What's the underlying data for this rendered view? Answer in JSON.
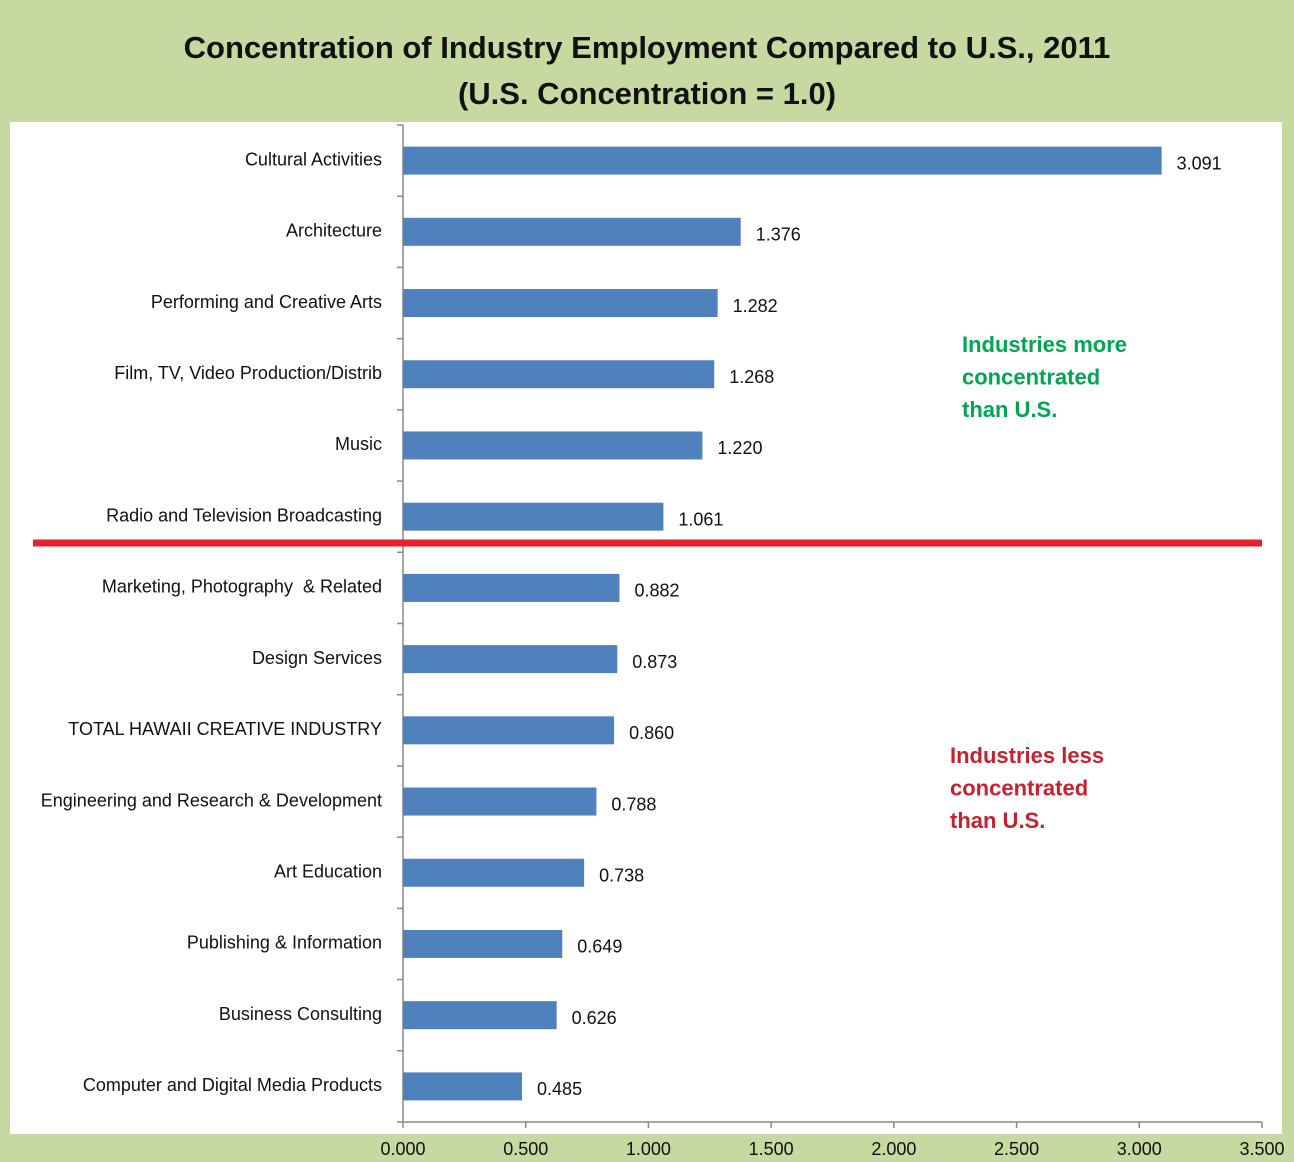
{
  "chart_data": {
    "type": "hbar",
    "title": "Concentration of Industry Employment Compared to U.S., 2011",
    "subtitle": "(U.S. Concentration = 1.0)",
    "categories": [
      "Cultural Activities",
      "Architecture",
      "Performing and Creative Arts",
      "Film, TV, Video Production/Distrib",
      "Music",
      "Radio and Television Broadcasting",
      "Marketing, Photography  & Related",
      "Design Services",
      "TOTAL HAWAII CREATIVE INDUSTRY",
      "Engineering and Research & Development",
      "Art Education",
      "Publishing & Information",
      "Business Consulting",
      "Computer and Digital Media Products"
    ],
    "values": [
      3.091,
      1.376,
      1.282,
      1.268,
      1.22,
      1.061,
      0.882,
      0.873,
      0.86,
      0.788,
      0.738,
      0.649,
      0.626,
      0.485
    ],
    "value_labels": [
      "3.091",
      "1.376",
      "1.282",
      "1.268",
      "1.220",
      "1.061",
      "0.882",
      "0.873",
      "0.860",
      "0.788",
      "0.738",
      "0.649",
      "0.626",
      "0.485"
    ],
    "color": "#4f81bd",
    "xlim": [
      0,
      3.5
    ],
    "xticks": [
      {
        "value": 0,
        "label": "0.000"
      },
      {
        "value": 0.5,
        "label": "0.500"
      },
      {
        "value": 1,
        "label": "1.000"
      },
      {
        "value": 1.5,
        "label": "1.500"
      },
      {
        "value": 2,
        "label": "2.000"
      },
      {
        "value": 2.5,
        "label": "2.500"
      },
      {
        "value": 3,
        "label": "3.000"
      },
      {
        "value": 3.5,
        "label": "3.500"
      }
    ],
    "annotations": [
      {
        "lines": [
          "Industries more",
          "concentrated",
          "than U.S."
        ],
        "color": "#00a651"
      },
      {
        "lines": [
          "Industries less",
          "concentrated",
          "than U.S."
        ],
        "color": "#c8202d"
      }
    ]
  }
}
